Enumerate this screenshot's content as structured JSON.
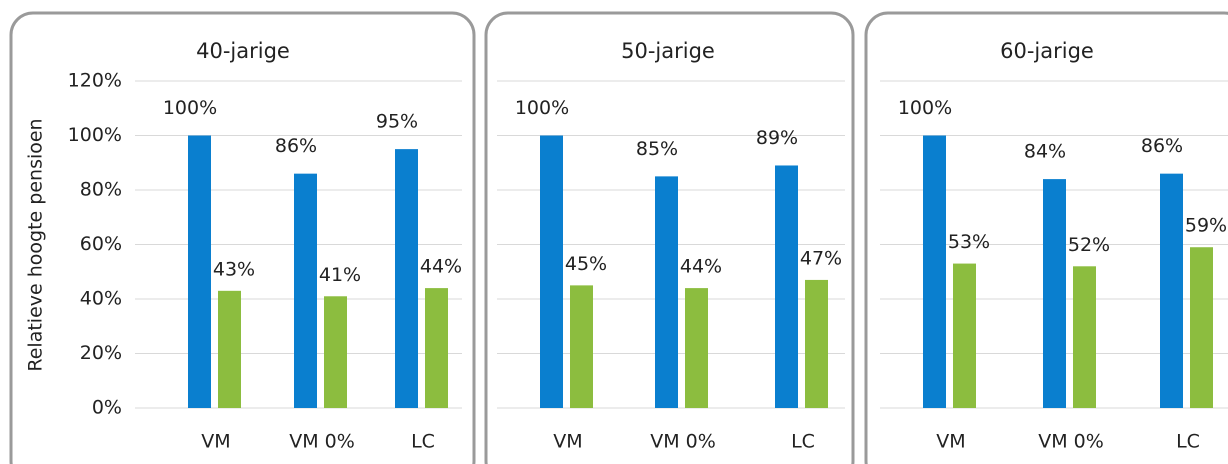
{
  "chart_data": [
    {
      "type": "bar",
      "title": "40-jarige",
      "y_label": "Relatieve hoogte pensioen",
      "categories": [
        "VM",
        "VM 0%",
        "LC"
      ],
      "series": [
        {
          "color": "#0a7fcf",
          "values": [
            100,
            86,
            95
          ],
          "value_labels": [
            "100%",
            "86%",
            "95%"
          ]
        },
        {
          "color": "#8cbd3f",
          "values": [
            43,
            41,
            44
          ],
          "value_labels": [
            "43%",
            "41%",
            "44%"
          ]
        }
      ],
      "ylim": [
        0,
        120
      ],
      "yticks": [
        {
          "value": 0,
          "label": "0%"
        },
        {
          "value": 20,
          "label": "20%"
        },
        {
          "value": 40,
          "label": "40%"
        },
        {
          "value": 60,
          "label": "60%"
        },
        {
          "value": 80,
          "label": "80%"
        },
        {
          "value": 100,
          "label": "100%"
        },
        {
          "value": 120,
          "label": "120%"
        }
      ],
      "grid": true
    },
    {
      "type": "bar",
      "title": "50-jarige",
      "categories": [
        "VM",
        "VM 0%",
        "LC"
      ],
      "series": [
        {
          "color": "#0a7fcf",
          "values": [
            100,
            85,
            89
          ],
          "value_labels": [
            "100%",
            "85%",
            "89%"
          ]
        },
        {
          "color": "#8cbd3f",
          "values": [
            45,
            44,
            47
          ],
          "value_labels": [
            "45%",
            "44%",
            "47%"
          ]
        }
      ],
      "ylim": [
        0,
        120
      ],
      "grid": true
    },
    {
      "type": "bar",
      "title": "60-jarige",
      "categories": [
        "VM",
        "VM 0%",
        "LC"
      ],
      "series": [
        {
          "color": "#0a7fcf",
          "values": [
            100,
            84,
            86
          ],
          "value_labels": [
            "100%",
            "84%",
            "86%"
          ]
        },
        {
          "color": "#8cbd3f",
          "values": [
            53,
            52,
            59
          ],
          "value_labels": [
            "53%",
            "52%",
            "59%"
          ]
        }
      ],
      "ylim": [
        0,
        120
      ],
      "grid": true
    }
  ]
}
